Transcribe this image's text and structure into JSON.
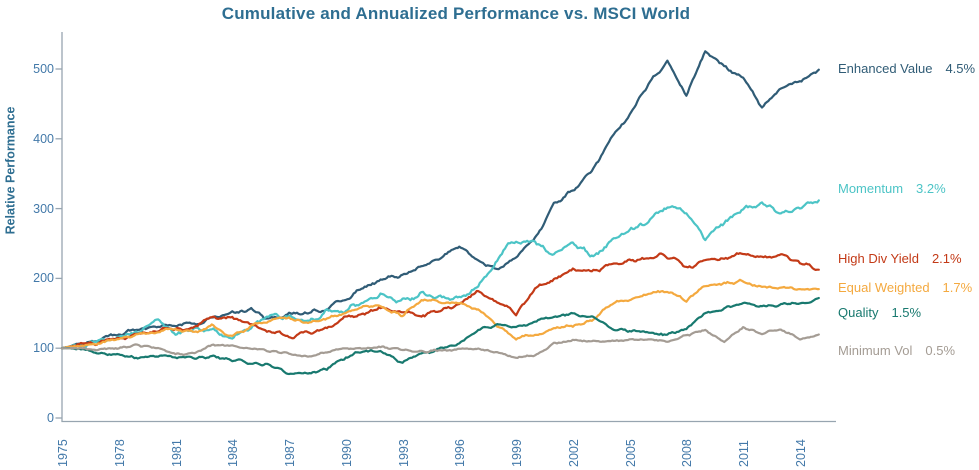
{
  "title": "Cumulative and Annualized Performance vs. MSCI World",
  "colors": {
    "title_text": "#2E6E91",
    "tick_text": "#4379A9",
    "axis_line": "#97A5B0"
  },
  "chart_data": {
    "type": "line",
    "title": "Cumulative and Annualized Performance vs. MSCI World",
    "xlabel": "",
    "ylabel": "Relative Performance",
    "ylim": [
      0,
      540
    ],
    "xlim": [
      1975,
      2015.5
    ],
    "grid": false,
    "legend_position": "right-of-plot, each label placed at series end level",
    "y_ticks": [
      0,
      100,
      200,
      300,
      400,
      500
    ],
    "x_ticks": [
      1975,
      1978,
      1981,
      1984,
      1987,
      1990,
      1993,
      1996,
      1999,
      2002,
      2005,
      2008,
      2011,
      2014
    ],
    "x": [
      1975,
      1976,
      1977,
      1978,
      1979,
      1980,
      1981,
      1982,
      1983,
      1984,
      1985,
      1986,
      1987,
      1988,
      1989,
      1990,
      1991,
      1992,
      1993,
      1994,
      1995,
      1996,
      1997,
      1998,
      1999,
      2000,
      2001,
      2002,
      2003,
      2004,
      2005,
      2006,
      2007,
      2008,
      2009,
      2010,
      2011,
      2012,
      2013,
      2014,
      2015
    ],
    "series": [
      {
        "name": "Enhanced Value",
        "annualized": "4.5%",
        "color": "#305C76",
        "values": [
          100,
          107,
          112,
          121,
          127,
          131,
          134,
          136,
          143,
          150,
          155,
          141,
          150,
          149,
          158,
          170,
          190,
          198,
          207,
          216,
          230,
          247,
          225,
          212,
          232,
          258,
          305,
          325,
          355,
          400,
          432,
          480,
          510,
          463,
          525,
          505,
          487,
          445,
          470,
          483,
          500
        ]
      },
      {
        "name": "Momentum",
        "annualized": "3.2%",
        "color": "#4CC4C6",
        "values": [
          100,
          104,
          110,
          118,
          124,
          140,
          122,
          128,
          130,
          112,
          132,
          145,
          145,
          139,
          152,
          153,
          166,
          178,
          167,
          178,
          172,
          172,
          188,
          228,
          258,
          250,
          235,
          250,
          230,
          252,
          268,
          278,
          305,
          295,
          258,
          280,
          300,
          308,
          297,
          302,
          310
        ]
      },
      {
        "name": "High Div Yield",
        "annualized": "2.1%",
        "color": "#C33A17",
        "values": [
          100,
          104,
          108,
          113,
          120,
          126,
          128,
          129,
          145,
          144,
          133,
          124,
          117,
          121,
          127,
          145,
          150,
          157,
          152,
          146,
          153,
          165,
          183,
          168,
          150,
          185,
          200,
          215,
          210,
          220,
          226,
          231,
          232,
          215,
          224,
          230,
          237,
          230,
          232,
          223,
          212
        ]
      },
      {
        "name": "Equal Weighted",
        "annualized": "1.7%",
        "color": "#F4A93F",
        "values": [
          100,
          103,
          107,
          114,
          119,
          124,
          127,
          124,
          132,
          117,
          132,
          140,
          143,
          136,
          142,
          150,
          162,
          157,
          147,
          170,
          167,
          164,
          156,
          132,
          115,
          120,
          128,
          133,
          140,
          162,
          170,
          178,
          181,
          168,
          188,
          192,
          195,
          188,
          186,
          184,
          183
        ]
      },
      {
        "name": "Quality",
        "annualized": "1.5%",
        "color": "#18796F",
        "values": [
          100,
          98,
          93,
          90,
          86,
          88,
          87,
          86,
          88,
          82,
          79,
          75,
          65,
          63,
          70,
          87,
          96,
          94,
          80,
          93,
          100,
          107,
          126,
          134,
          131,
          138,
          145,
          150,
          145,
          128,
          124,
          121,
          119,
          128,
          150,
          158,
          165,
          160,
          163,
          166,
          170
        ]
      },
      {
        "name": "Minimum Vol",
        "annualized": "0.5%",
        "color": "#A49C94",
        "values": [
          100,
          100,
          99,
          100,
          105,
          100,
          92,
          93,
          105,
          103,
          100,
          97,
          93,
          88,
          95,
          100,
          100,
          102,
          98,
          95,
          97,
          98,
          99,
          93,
          86,
          90,
          107,
          112,
          108,
          110,
          112,
          112,
          110,
          118,
          126,
          110,
          130,
          120,
          128,
          113,
          119
        ]
      }
    ]
  }
}
